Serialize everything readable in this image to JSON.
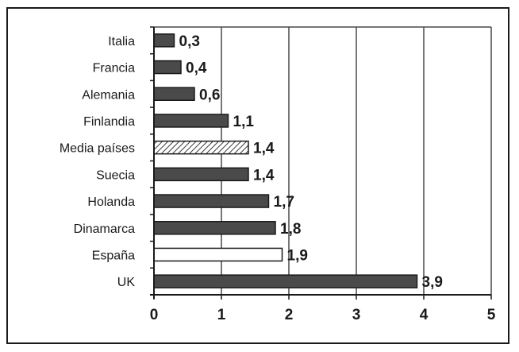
{
  "chart_data": {
    "type": "bar",
    "orientation": "horizontal",
    "categories": [
      "Italia",
      "Francia",
      "Alemania",
      "Finlandia",
      "Media países",
      "Suecia",
      "Holanda",
      "Dinamarca",
      "España",
      "UK"
    ],
    "values": [
      0.3,
      0.4,
      0.6,
      1.1,
      1.4,
      1.4,
      1.7,
      1.8,
      1.9,
      3.9
    ],
    "value_labels": [
      "0,3",
      "0,4",
      "0,6",
      "1,1",
      "1,4",
      "1,4",
      "1,7",
      "1,8",
      "1,9",
      "3,9"
    ],
    "bar_styles": [
      "solid",
      "solid",
      "solid",
      "solid",
      "hatched",
      "solid",
      "solid",
      "solid",
      "outline",
      "solid"
    ],
    "xlim": [
      0,
      5
    ],
    "x_ticks": [
      "0",
      "1",
      "2",
      "3",
      "4",
      "5"
    ],
    "grid": "vertical",
    "legend": "none",
    "colors": {
      "bar": "#4a4a4a",
      "outline_bar": "#ffffff",
      "grid": "#4a4a4a",
      "text": "#1a1a1a"
    }
  }
}
